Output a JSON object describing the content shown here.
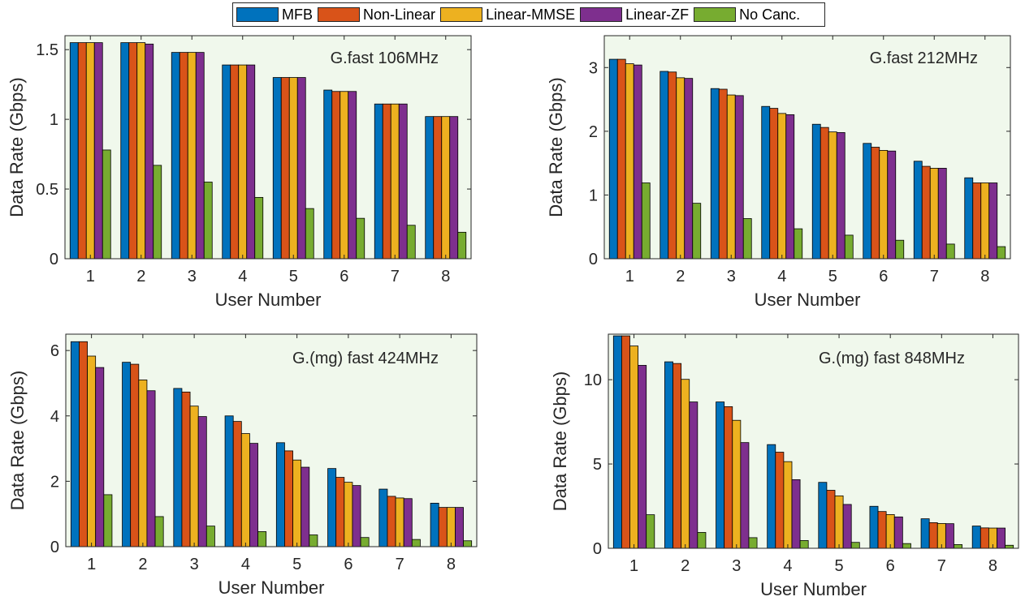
{
  "legend": [
    {
      "name": "MFB",
      "color": "#0072BD"
    },
    {
      "name": "Non-Linear",
      "color": "#D95319"
    },
    {
      "name": "Linear-MMSE",
      "color": "#EDB120"
    },
    {
      "name": "Linear-ZF",
      "color": "#7E2F8E"
    },
    {
      "name": "No Canc.",
      "color": "#77AC30"
    }
  ],
  "plot_background": "#F0F8EC",
  "chart_data": [
    {
      "type": "bar",
      "annotation": "G.fast 106MHz",
      "xlabel": "User Number",
      "ylabel": "Data Rate (Gbps)",
      "categories": [
        "1",
        "2",
        "3",
        "4",
        "5",
        "6",
        "7",
        "8"
      ],
      "ylim": [
        0,
        1.6
      ],
      "yticks": [
        0,
        0.5,
        1,
        1.5
      ],
      "ytick_labels": [
        "0",
        "0.5",
        "1",
        "1.5"
      ],
      "grid": false,
      "legend_position": "top-center",
      "series": [
        {
          "name": "MFB",
          "values": [
            1.55,
            1.55,
            1.48,
            1.39,
            1.3,
            1.21,
            1.11,
            1.02
          ]
        },
        {
          "name": "Non-Linear",
          "values": [
            1.55,
            1.55,
            1.48,
            1.39,
            1.3,
            1.2,
            1.11,
            1.02
          ]
        },
        {
          "name": "Linear-MMSE",
          "values": [
            1.55,
            1.55,
            1.48,
            1.39,
            1.3,
            1.2,
            1.11,
            1.02
          ]
        },
        {
          "name": "Linear-ZF",
          "values": [
            1.55,
            1.54,
            1.48,
            1.39,
            1.3,
            1.2,
            1.11,
            1.02
          ]
        },
        {
          "name": "No Canc.",
          "values": [
            0.78,
            0.67,
            0.55,
            0.44,
            0.36,
            0.29,
            0.24,
            0.19
          ]
        }
      ]
    },
    {
      "type": "bar",
      "annotation": "G.fast 212MHz",
      "xlabel": "User Number",
      "ylabel": "Data Rate (Gbps)",
      "categories": [
        "1",
        "2",
        "3",
        "4",
        "5",
        "6",
        "7",
        "8"
      ],
      "ylim": [
        0,
        3.5
      ],
      "yticks": [
        0,
        1,
        2,
        3
      ],
      "ytick_labels": [
        "0",
        "1",
        "2",
        "3"
      ],
      "grid": false,
      "series": [
        {
          "name": "MFB",
          "values": [
            3.13,
            2.94,
            2.67,
            2.39,
            2.11,
            1.81,
            1.53,
            1.27
          ]
        },
        {
          "name": "Non-Linear",
          "values": [
            3.13,
            2.93,
            2.66,
            2.36,
            2.06,
            1.75,
            1.45,
            1.19
          ]
        },
        {
          "name": "Linear-MMSE",
          "values": [
            3.06,
            2.84,
            2.57,
            2.28,
            1.99,
            1.7,
            1.42,
            1.19
          ]
        },
        {
          "name": "Linear-ZF",
          "values": [
            3.04,
            2.83,
            2.56,
            2.26,
            1.98,
            1.69,
            1.42,
            1.19
          ]
        },
        {
          "name": "No Canc.",
          "values": [
            1.19,
            0.87,
            0.63,
            0.47,
            0.37,
            0.29,
            0.23,
            0.19
          ]
        }
      ]
    },
    {
      "type": "bar",
      "annotation": "G.(mg) fast 424MHz",
      "xlabel": "User Number",
      "ylabel": "Data Rate (Gbps)",
      "categories": [
        "1",
        "2",
        "3",
        "4",
        "5",
        "6",
        "7",
        "8"
      ],
      "ylim": [
        0,
        6.5
      ],
      "yticks": [
        0,
        2,
        4,
        6
      ],
      "ytick_labels": [
        "0",
        "2",
        "4",
        "6"
      ],
      "grid": false,
      "series": [
        {
          "name": "MFB",
          "values": [
            6.27,
            5.64,
            4.84,
            4.0,
            3.18,
            2.39,
            1.76,
            1.33
          ]
        },
        {
          "name": "Non-Linear",
          "values": [
            6.27,
            5.58,
            4.73,
            3.83,
            2.93,
            2.12,
            1.54,
            1.2
          ]
        },
        {
          "name": "Linear-MMSE",
          "values": [
            5.83,
            5.1,
            4.3,
            3.46,
            2.65,
            1.97,
            1.49,
            1.2
          ]
        },
        {
          "name": "Linear-ZF",
          "values": [
            5.48,
            4.77,
            3.98,
            3.16,
            2.43,
            1.87,
            1.47,
            1.2
          ]
        },
        {
          "name": "No Canc.",
          "values": [
            1.59,
            0.92,
            0.63,
            0.46,
            0.36,
            0.28,
            0.22,
            0.18
          ]
        }
      ]
    },
    {
      "type": "bar",
      "annotation": "G.(mg) fast 848MHz",
      "xlabel": "User Number",
      "ylabel": "Data Rate (Gbps)",
      "categories": [
        "1",
        "2",
        "3",
        "4",
        "5",
        "6",
        "7",
        "8"
      ],
      "ylim": [
        0,
        12.7
      ],
      "yticks": [
        0,
        5,
        10
      ],
      "ytick_labels": [
        "0",
        "5",
        "10"
      ],
      "grid": false,
      "series": [
        {
          "name": "MFB",
          "values": [
            12.6,
            11.06,
            8.68,
            6.15,
            3.91,
            2.49,
            1.75,
            1.32
          ]
        },
        {
          "name": "Non-Linear",
          "values": [
            12.6,
            10.96,
            8.4,
            5.7,
            3.44,
            2.18,
            1.52,
            1.21
          ]
        },
        {
          "name": "Linear-MMSE",
          "values": [
            12.0,
            10.02,
            7.59,
            5.14,
            3.11,
            2.0,
            1.47,
            1.2
          ]
        },
        {
          "name": "Linear-ZF",
          "values": [
            10.85,
            8.68,
            6.27,
            4.07,
            2.6,
            1.86,
            1.46,
            1.2
          ]
        },
        {
          "name": "No Canc.",
          "values": [
            1.99,
            0.94,
            0.63,
            0.46,
            0.35,
            0.28,
            0.22,
            0.18
          ]
        }
      ]
    }
  ]
}
